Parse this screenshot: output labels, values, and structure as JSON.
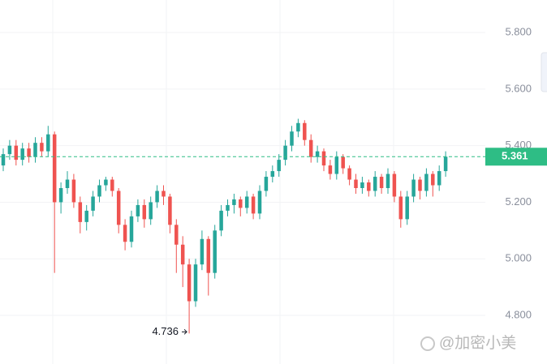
{
  "chart_data": {
    "type": "candlestick",
    "ohlc": [
      [
        5.33,
        5.39,
        5.31,
        5.37
      ],
      [
        5.37,
        5.42,
        5.35,
        5.4
      ],
      [
        5.4,
        5.42,
        5.33,
        5.35
      ],
      [
        5.35,
        5.41,
        5.33,
        5.39
      ],
      [
        5.39,
        5.41,
        5.34,
        5.36
      ],
      [
        5.36,
        5.43,
        5.34,
        5.41
      ],
      [
        5.41,
        5.43,
        5.36,
        5.38
      ],
      [
        5.38,
        5.47,
        5.36,
        5.44
      ],
      [
        5.44,
        5.45,
        4.95,
        5.2
      ],
      [
        5.2,
        5.27,
        5.16,
        5.25
      ],
      [
        5.25,
        5.31,
        5.23,
        5.28
      ],
      [
        5.28,
        5.3,
        5.18,
        5.2
      ],
      [
        5.2,
        5.22,
        5.09,
        5.13
      ],
      [
        5.13,
        5.19,
        5.1,
        5.17
      ],
      [
        5.17,
        5.24,
        5.15,
        5.22
      ],
      [
        5.22,
        5.28,
        5.2,
        5.26
      ],
      [
        5.26,
        5.29,
        5.24,
        5.28
      ],
      [
        5.28,
        5.29,
        5.22,
        5.24
      ],
      [
        5.24,
        5.25,
        5.09,
        5.12
      ],
      [
        5.12,
        5.14,
        5.03,
        5.06
      ],
      [
        5.06,
        5.17,
        5.04,
        5.15
      ],
      [
        5.15,
        5.21,
        5.13,
        5.19
      ],
      [
        5.19,
        5.21,
        5.11,
        5.14
      ],
      [
        5.14,
        5.22,
        5.12,
        5.2
      ],
      [
        5.2,
        5.26,
        5.18,
        5.24
      ],
      [
        5.24,
        5.26,
        5.19,
        5.22
      ],
      [
        5.22,
        5.23,
        5.09,
        5.12
      ],
      [
        5.12,
        5.14,
        4.95,
        5.05
      ],
      [
        5.05,
        5.08,
        4.9,
        4.98
      ],
      [
        4.98,
        5.0,
        4.736,
        4.85
      ],
      [
        4.85,
        5.0,
        4.83,
        4.98
      ],
      [
        4.98,
        5.1,
        4.96,
        5.07
      ],
      [
        5.07,
        5.08,
        4.87,
        4.95
      ],
      [
        4.95,
        5.12,
        4.93,
        5.1
      ],
      [
        5.1,
        5.19,
        5.08,
        5.17
      ],
      [
        5.17,
        5.21,
        5.15,
        5.19
      ],
      [
        5.19,
        5.23,
        5.16,
        5.21
      ],
      [
        5.21,
        5.22,
        5.15,
        5.18
      ],
      [
        5.18,
        5.24,
        5.16,
        5.22
      ],
      [
        5.22,
        5.23,
        5.14,
        5.16
      ],
      [
        5.16,
        5.26,
        5.14,
        5.24
      ],
      [
        5.24,
        5.31,
        5.22,
        5.29
      ],
      [
        5.29,
        5.33,
        5.27,
        5.31
      ],
      [
        5.31,
        5.37,
        5.29,
        5.35
      ],
      [
        5.35,
        5.42,
        5.33,
        5.4
      ],
      [
        5.4,
        5.47,
        5.38,
        5.45
      ],
      [
        5.45,
        5.495,
        5.43,
        5.48
      ],
      [
        5.48,
        5.49,
        5.4,
        5.42
      ],
      [
        5.42,
        5.44,
        5.34,
        5.36
      ],
      [
        5.36,
        5.4,
        5.34,
        5.38
      ],
      [
        5.38,
        5.39,
        5.31,
        5.33
      ],
      [
        5.33,
        5.35,
        5.28,
        5.3
      ],
      [
        5.3,
        5.38,
        5.28,
        5.36
      ],
      [
        5.36,
        5.37,
        5.3,
        5.32
      ],
      [
        5.32,
        5.33,
        5.26,
        5.28
      ],
      [
        5.28,
        5.3,
        5.23,
        5.25
      ],
      [
        5.25,
        5.29,
        5.23,
        5.27
      ],
      [
        5.27,
        5.28,
        5.22,
        5.24
      ],
      [
        5.24,
        5.31,
        5.22,
        5.29
      ],
      [
        5.29,
        5.3,
        5.23,
        5.25
      ],
      [
        5.25,
        5.32,
        5.23,
        5.3
      ],
      [
        5.3,
        5.31,
        5.2,
        5.22
      ],
      [
        5.22,
        5.24,
        5.11,
        5.14
      ],
      [
        5.14,
        5.24,
        5.12,
        5.22
      ],
      [
        5.22,
        5.3,
        5.2,
        5.28
      ],
      [
        5.28,
        5.29,
        5.21,
        5.24
      ],
      [
        5.24,
        5.32,
        5.22,
        5.3
      ],
      [
        5.3,
        5.31,
        5.22,
        5.26
      ],
      [
        5.26,
        5.33,
        5.24,
        5.31
      ],
      [
        5.31,
        5.38,
        5.29,
        5.361
      ]
    ],
    "up_color": "#26a69a",
    "down_color": "#ef5350",
    "ylim": [
      4.628,
      5.915
    ],
    "yticks": [
      {
        "value": 4.8,
        "label": "4.800"
      },
      {
        "value": 5.0,
        "label": "5.000"
      },
      {
        "value": 5.2,
        "label": "5.200"
      },
      {
        "value": 5.4,
        "label": "5.400"
      },
      {
        "value": 5.6,
        "label": "5.600"
      },
      {
        "value": 5.8,
        "label": "5.800"
      }
    ],
    "last_price": 5.361,
    "last_price_color": "#2ebd85",
    "low_annotation_index": 29,
    "grid": true,
    "watermark": "@加密小美"
  }
}
